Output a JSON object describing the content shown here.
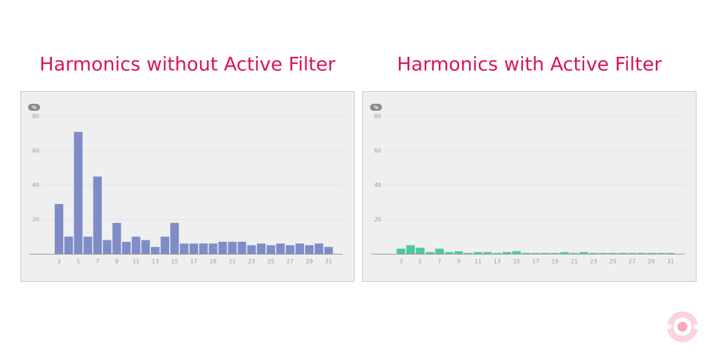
{
  "chart_data": [
    {
      "type": "bar",
      "title": "Harmonics without Active Filter",
      "unit_badge": "%",
      "color": "#7f8cc8",
      "categories": [
        3,
        null,
        5,
        null,
        7,
        null,
        9,
        null,
        11,
        null,
        13,
        null,
        15,
        null,
        17,
        null,
        19,
        null,
        21,
        null,
        23,
        null,
        25,
        null,
        27,
        null,
        29,
        null,
        31
      ],
      "values": [
        29,
        10,
        71,
        10,
        45,
        8,
        18,
        7,
        10,
        8,
        4,
        10,
        18,
        6,
        6,
        6,
        6,
        7,
        7,
        7,
        5,
        6,
        5,
        6,
        5,
        6,
        5,
        6,
        4
      ],
      "ylim": [
        0,
        80
      ],
      "yticks": [
        20,
        40,
        60,
        80
      ],
      "grid": true
    },
    {
      "type": "bar",
      "title": "Harmonics with Active Filter",
      "unit_badge": "%",
      "color": "#4dc99a",
      "categories": [
        3,
        null,
        5,
        null,
        7,
        null,
        9,
        null,
        11,
        null,
        13,
        null,
        15,
        null,
        17,
        null,
        19,
        null,
        21,
        null,
        23,
        null,
        25,
        null,
        27,
        null,
        29,
        null,
        31
      ],
      "values": [
        3,
        5,
        3.5,
        1,
        3,
        1,
        1.5,
        0.5,
        1,
        1,
        0.5,
        1,
        1.5,
        0.5,
        0.5,
        0.5,
        0.5,
        1,
        0.5,
        1,
        0.5,
        0.5,
        0.5,
        0.5,
        0.5,
        0.5,
        0.5,
        0.5,
        0.5
      ],
      "ylim": [
        0,
        80
      ],
      "yticks": [
        20,
        40,
        60,
        80
      ],
      "grid": true
    }
  ]
}
